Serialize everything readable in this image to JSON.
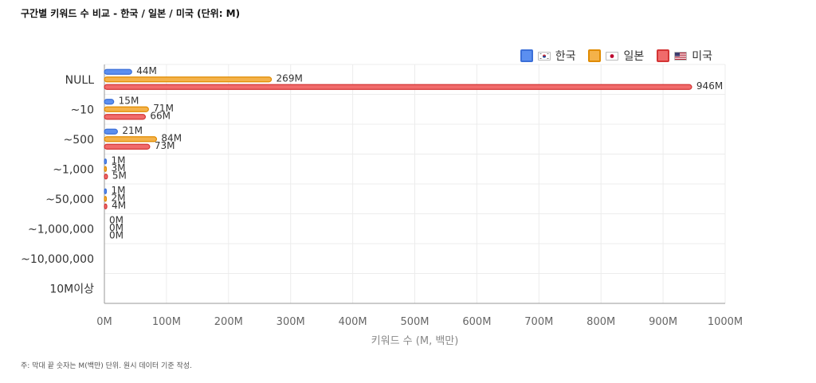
{
  "page": {
    "title": "구간별 키워드 수 비교 - 한국 / 일본 / 미국 (단위: M)",
    "footnote": "주: 막대 끝 숫자는 M(백만) 단위. 원시 데이터 기준 작성."
  },
  "chart_data": {
    "type": "bar",
    "orientation": "horizontal",
    "title": "구간별 키워드 수 비교 - 한국 / 일본 / 미국 (단위: M)",
    "xlabel": "키워드 수 (M, 백만)",
    "ylabel": "",
    "xlim": [
      0,
      1000
    ],
    "x_ticks": [
      "0M",
      "100M",
      "200M",
      "300M",
      "400M",
      "500M",
      "600M",
      "700M",
      "800M",
      "900M",
      "1000M"
    ],
    "grid": true,
    "legend_position": "top-right",
    "categories": [
      "NULL",
      "~10",
      "~500",
      "~1,000",
      "~50,000",
      "~1,000,000",
      "~10,000,000",
      "10M이상"
    ],
    "series": [
      {
        "name": "한국",
        "flag": "kr-flag-icon",
        "color": "#5b8ff0",
        "stroke": "#3b6fd8",
        "values": [
          44,
          15,
          21,
          1,
          1,
          0,
          null,
          null
        ],
        "labels": [
          "44M",
          "15M",
          "21M",
          "1M",
          "1M",
          "0M",
          "",
          ""
        ]
      },
      {
        "name": "일본",
        "flag": "jp-flag-icon",
        "color": "#f4b24a",
        "stroke": "#e08b00",
        "values": [
          269,
          71,
          84,
          3,
          2,
          0,
          null,
          null
        ],
        "labels": [
          "269M",
          "71M",
          "84M",
          "3M",
          "2M",
          "0M",
          "",
          ""
        ]
      },
      {
        "name": "미국",
        "flag": "us-flag-icon",
        "color": "#f06b6b",
        "stroke": "#d43535",
        "values": [
          946,
          66,
          73,
          5,
          4,
          0,
          null,
          null
        ],
        "labels": [
          "946M",
          "66M",
          "73M",
          "5M",
          "4M",
          "0M",
          "",
          ""
        ]
      }
    ]
  }
}
